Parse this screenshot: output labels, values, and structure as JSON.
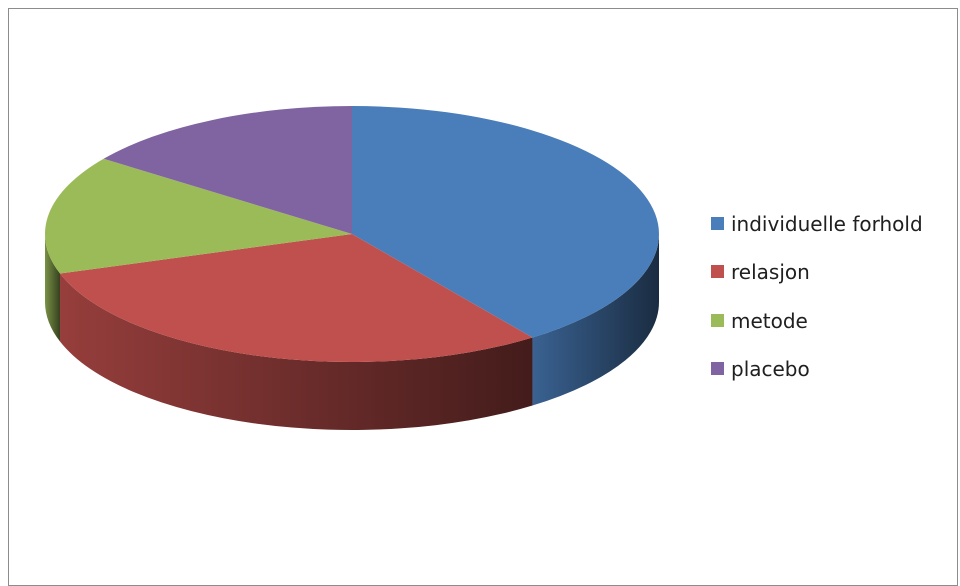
{
  "chart_data": {
    "type": "pie",
    "title": "",
    "series": [
      {
        "name": "individuelle forhold",
        "value": 40,
        "color": "#4A7EBB"
      },
      {
        "name": "relasjon",
        "value": 30,
        "color": "#C0504D"
      },
      {
        "name": "metode",
        "value": 15,
        "color": "#9BBB59"
      },
      {
        "name": "placebo",
        "value": 15,
        "color": "#8064A2"
      }
    ],
    "legend": {
      "position": "right",
      "items": [
        "individuelle forhold",
        "relasjon",
        "metode",
        "placebo"
      ]
    },
    "style": "3d"
  }
}
